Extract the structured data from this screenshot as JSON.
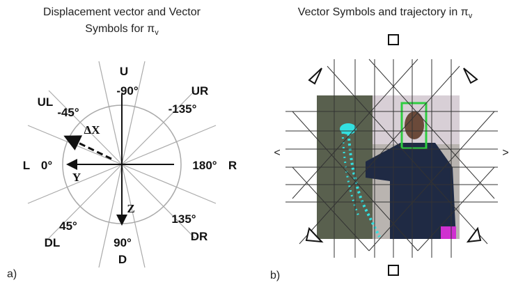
{
  "left": {
    "title_line1": "Displacement vector and Vector",
    "title_line2": "Symbols for π",
    "title_sub": "v",
    "labels": {
      "U": "U",
      "neg90": "-90°",
      "UR": "UR",
      "neg135": "-135°",
      "UL": "UL",
      "neg45": "-45°",
      "L": "L",
      "zero": "0°",
      "d180": "180°",
      "R": "R",
      "d45": "45°",
      "DL": "DL",
      "d90": "90°",
      "D": "D",
      "d135": "135°",
      "DR": "DR",
      "dX": "ΔX",
      "Y": "Y",
      "Z": "Z"
    },
    "panel": "a)"
  },
  "right": {
    "title": "Vector Symbols and trajectory in π",
    "title_sub": "v",
    "left_mark": "<",
    "right_mark": ">",
    "panel": "b)"
  }
}
